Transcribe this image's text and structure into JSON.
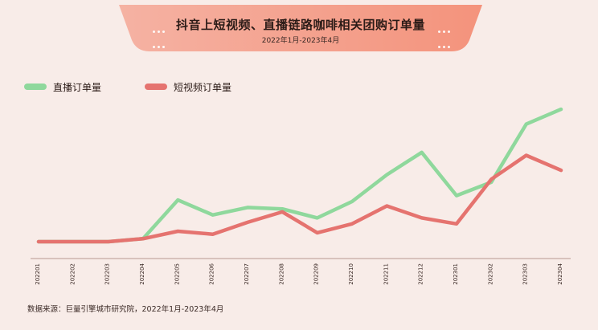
{
  "header": {
    "title": "抖音上短视频、直播链路咖啡相关团购订单量",
    "subtitle": "2022年1月-2023年4月"
  },
  "footer": {
    "source": "数据来源：巨量引擎城市研究院，2022年1月-2023年4月"
  },
  "colors": {
    "background": "#f8ece8",
    "banner_left": "#f5b2a3",
    "banner_right": "#f4937c",
    "live": "#8fd89c",
    "video": "#e5736f",
    "axis": "#b99990"
  },
  "chart_data": {
    "type": "line",
    "title": "抖音上短视频、直播链路咖啡相关团购订单量",
    "subtitle": "2022年1月-2023年4月",
    "x": [
      "202201",
      "202202",
      "202203",
      "202204",
      "202205",
      "202206",
      "202207",
      "202208",
      "202209",
      "202210",
      "202211",
      "202212",
      "202301",
      "202302",
      "202303",
      "202304"
    ],
    "series": [
      {
        "name": "直播订单量",
        "color": "#8fd89c",
        "values": [
          0,
          0,
          0,
          2,
          28,
          18,
          23,
          22,
          16,
          27,
          45,
          60,
          31,
          40,
          79,
          89
        ]
      },
      {
        "name": "短视频订单量",
        "color": "#e5736f",
        "values": [
          0,
          0,
          0,
          2,
          7,
          5,
          13,
          20,
          6,
          12,
          24,
          16,
          12,
          42,
          58,
          48
        ]
      }
    ],
    "legend_position": "top-left",
    "grid": false,
    "ylim": [
      0,
      95
    ]
  }
}
